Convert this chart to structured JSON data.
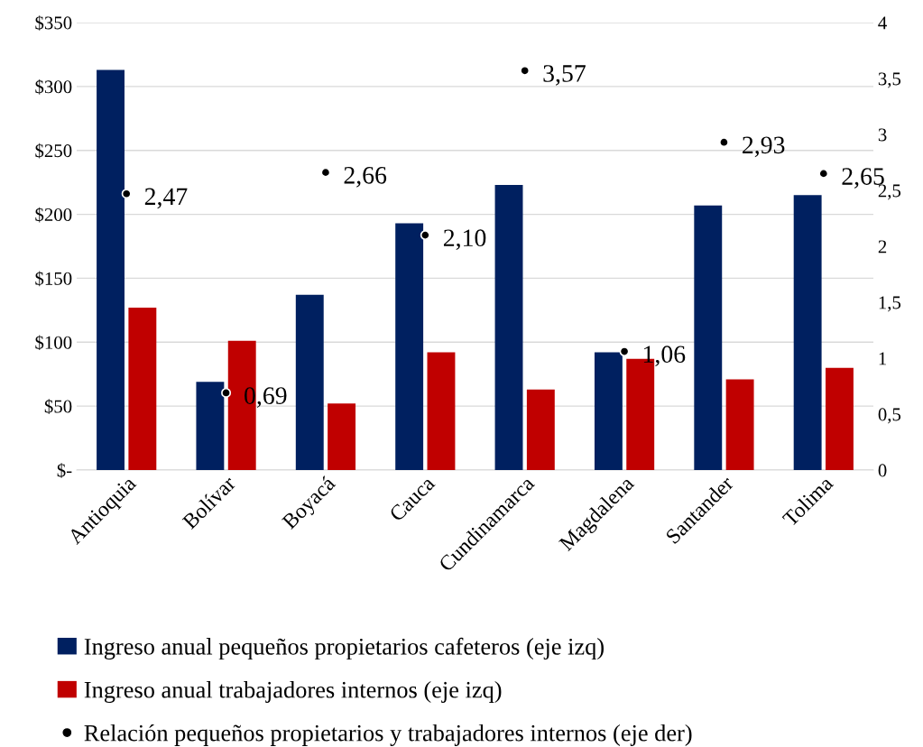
{
  "chart_data": {
    "type": "bar",
    "categories": [
      "Antioquia",
      "Bolívar",
      "Boyacá",
      "Cauca",
      "Cundinamarca",
      "Magdalena",
      "Santander",
      "Tolima"
    ],
    "series": [
      {
        "name": "Ingreso anual pequeños propietarios cafeteros (eje izq)",
        "color": "#002060",
        "values": [
          313,
          69,
          137,
          193,
          223,
          92,
          207,
          215
        ]
      },
      {
        "name": "Ingreso anual trabajadores internos (eje izq)",
        "color": "#c00000",
        "values": [
          127,
          101,
          52,
          92,
          63,
          87,
          71,
          80
        ]
      },
      {
        "name": "Relación pequeños propietarios y trabajadores internos (eje der)",
        "type": "scatter",
        "axis": "y2",
        "color": "#000000",
        "marker": "circle",
        "values": [
          2.47,
          0.69,
          2.66,
          2.1,
          3.57,
          1.06,
          2.93,
          2.65
        ],
        "value_labels": [
          "2,47",
          "0,69",
          "2,66",
          "2,10",
          "3,57",
          "1,06",
          "2,93",
          "2,65"
        ]
      }
    ],
    "ylim": [
      0,
      350
    ],
    "yticks": [
      {
        "value": 0,
        "label": "$-"
      },
      {
        "value": 50,
        "label": "$50"
      },
      {
        "value": 100,
        "label": "$100"
      },
      {
        "value": 150,
        "label": "$150"
      },
      {
        "value": 200,
        "label": "$200"
      },
      {
        "value": 250,
        "label": "$250"
      },
      {
        "value": 300,
        "label": "$300"
      },
      {
        "value": 350,
        "label": "$350"
      }
    ],
    "y2lim": [
      0,
      4
    ],
    "y2ticks": [
      0,
      {
        "value": 0.5,
        "label": "0,5"
      },
      1,
      {
        "value": 1.5,
        "label": "1,5"
      },
      2,
      {
        "value": 2.5,
        "label": "2,5"
      },
      3,
      {
        "value": 3.5,
        "label": "3,5"
      },
      4
    ],
    "grid": "y",
    "legend": "bottom"
  }
}
